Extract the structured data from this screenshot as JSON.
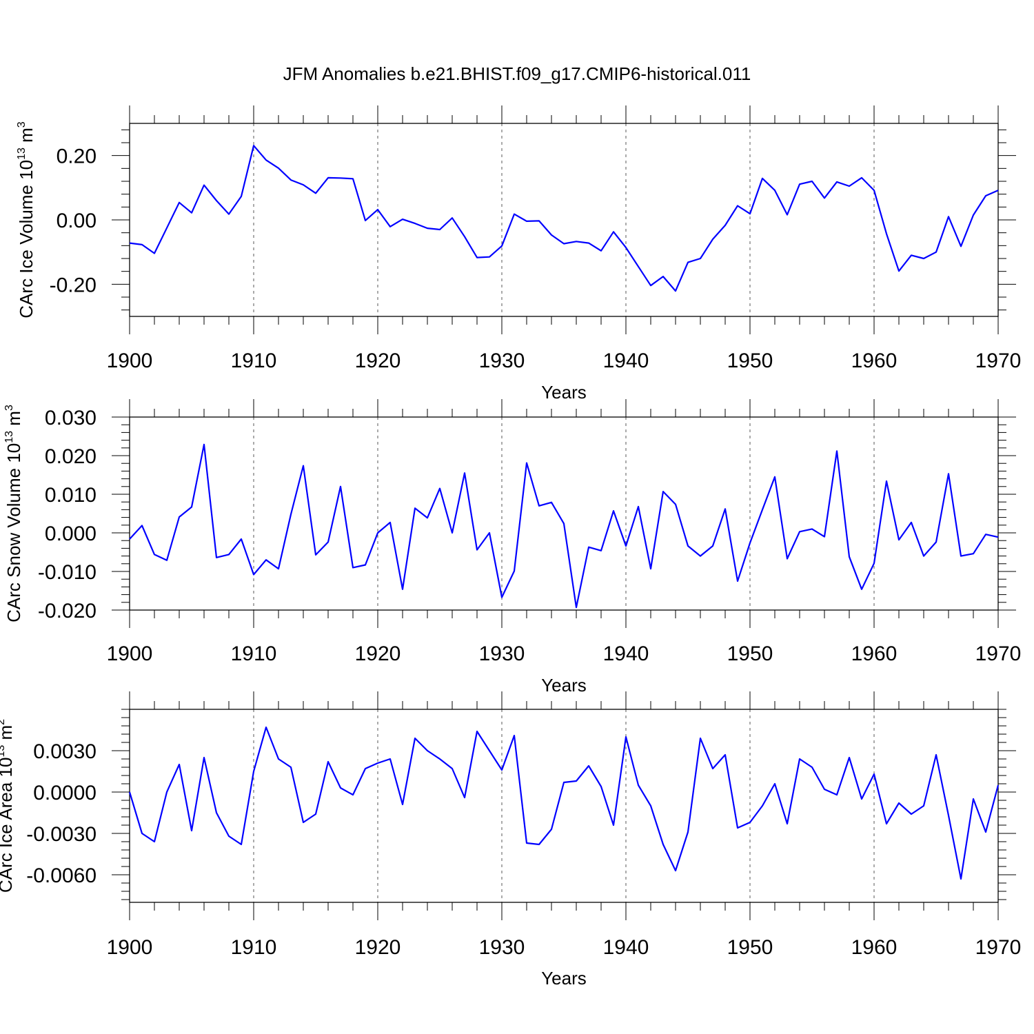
{
  "figure_title": "JFM Anomalies b.e21.BHIST.f09_g17.CMIP6-historical.011",
  "colors": {
    "series": "#0000ff",
    "axes": "#000000",
    "grid": "#555555"
  },
  "chart_data": [
    {
      "type": "line",
      "title": "JFM Anomalies b.e21.BHIST.f09_g17.CMIP6-historical.011",
      "xlabel": "Years",
      "ylabel": "CArc Ice Volume 10",
      "ylabel_sup": "13",
      "ylabel_unit": "m",
      "ylabel_unit_sup": "3",
      "xlim": [
        1900,
        1970
      ],
      "ylim": [
        -0.3,
        0.3
      ],
      "x_ticks": [
        "1900",
        "1910",
        "1920",
        "1930",
        "1940",
        "1950",
        "1960",
        "1970"
      ],
      "y_ticks": [
        {
          "value": 0.2,
          "label": "0.20"
        },
        {
          "value": 0.0,
          "label": "0.00"
        },
        {
          "value": -0.2,
          "label": "-0.20"
        }
      ],
      "x_start": 1900,
      "values": [
        -0.072,
        -0.077,
        -0.104,
        -0.025,
        0.054,
        0.022,
        0.108,
        0.06,
        0.018,
        0.073,
        0.231,
        0.186,
        0.161,
        0.124,
        0.109,
        0.083,
        0.131,
        0.13,
        0.128,
        -0.002,
        0.032,
        -0.021,
        0.002,
        -0.011,
        -0.026,
        -0.03,
        0.006,
        -0.052,
        -0.117,
        -0.115,
        -0.081,
        0.018,
        -0.004,
        -0.003,
        -0.047,
        -0.074,
        -0.067,
        -0.072,
        -0.096,
        -0.037,
        -0.086,
        -0.145,
        -0.204,
        -0.176,
        -0.221,
        -0.132,
        -0.12,
        -0.06,
        -0.017,
        0.044,
        0.019,
        0.129,
        0.092,
        0.016,
        0.111,
        0.12,
        0.068,
        0.118,
        0.105,
        0.131,
        0.092,
        -0.043,
        -0.159,
        -0.11,
        -0.12,
        -0.1,
        0.01,
        -0.082,
        0.015,
        0.075,
        0.092
      ]
    },
    {
      "type": "line",
      "xlabel": "Years",
      "ylabel": "CArc Snow Volume 10",
      "ylabel_sup": "13",
      "ylabel_unit": "m",
      "ylabel_unit_sup": "3",
      "xlim": [
        1900,
        1970
      ],
      "ylim": [
        -0.02,
        0.03
      ],
      "x_ticks": [
        "1900",
        "1910",
        "1920",
        "1930",
        "1940",
        "1950",
        "1960",
        "1970"
      ],
      "y_ticks": [
        {
          "value": 0.03,
          "label": "0.030"
        },
        {
          "value": 0.02,
          "label": "0.020"
        },
        {
          "value": 0.01,
          "label": "0.010"
        },
        {
          "value": 0.0,
          "label": "0.000"
        },
        {
          "value": -0.01,
          "label": "-0.010"
        },
        {
          "value": -0.02,
          "label": "-0.020"
        }
      ],
      "x_start": 1900,
      "values": [
        -0.0016,
        0.0019,
        -0.0056,
        -0.0071,
        0.0041,
        0.0067,
        0.0229,
        -0.0064,
        -0.0056,
        -0.0016,
        -0.0108,
        -0.007,
        -0.0093,
        0.0048,
        0.0174,
        -0.0057,
        -0.0024,
        0.012,
        -0.009,
        -0.0083,
        0.0,
        0.0027,
        -0.0146,
        0.0064,
        0.0039,
        0.0115,
        0.0,
        0.0155,
        -0.0044,
        0.0,
        -0.0167,
        -0.0099,
        0.0181,
        0.007,
        0.0079,
        0.0024,
        -0.0193,
        -0.0037,
        -0.0046,
        0.0057,
        -0.0034,
        0.0068,
        -0.0093,
        0.0107,
        0.0074,
        -0.0034,
        -0.006,
        -0.0034,
        0.0062,
        -0.0125,
        -0.0026,
        0.006,
        0.0145,
        -0.0067,
        0.0003,
        0.001,
        -0.001,
        0.0212,
        -0.0062,
        -0.0146,
        -0.0079,
        0.0134,
        -0.0018,
        0.0027,
        -0.006,
        -0.0024,
        0.0153,
        -0.006,
        -0.0054,
        -0.0004,
        -0.0011
      ]
    },
    {
      "type": "line",
      "xlabel": "Years",
      "ylabel": "CArc Ice Area 10",
      "ylabel_sup": "13",
      "ylabel_unit": "m",
      "ylabel_unit_sup": "2",
      "xlim": [
        1900,
        1970
      ],
      "ylim": [
        -0.008,
        0.006
      ],
      "x_ticks": [
        "1900",
        "1910",
        "1920",
        "1930",
        "1940",
        "1950",
        "1960",
        "1970"
      ],
      "y_ticks": [
        {
          "value": 0.003,
          "label": "0.0030"
        },
        {
          "value": 0.0,
          "label": "0.0000"
        },
        {
          "value": -0.003,
          "label": "-0.0030"
        },
        {
          "value": -0.006,
          "label": "-0.0060"
        }
      ],
      "x_start": 1900,
      "values": [
        0.0,
        -0.003,
        -0.0036,
        0.0,
        0.002,
        -0.0028,
        0.0025,
        -0.0015,
        -0.0032,
        -0.0038,
        0.0015,
        0.0047,
        0.0024,
        0.0018,
        -0.0022,
        -0.0016,
        0.0022,
        0.0003,
        -0.0002,
        0.0017,
        0.0021,
        0.0024,
        -0.0009,
        0.0039,
        0.003,
        0.0024,
        0.0017,
        -0.0004,
        0.0044,
        0.003,
        0.0016,
        0.0041,
        -0.0037,
        -0.0038,
        -0.0027,
        0.0007,
        0.0008,
        0.0019,
        0.0004,
        -0.0024,
        0.004,
        0.0005,
        -0.001,
        -0.0038,
        -0.0057,
        -0.0029,
        0.0039,
        0.0017,
        0.0027,
        -0.0026,
        -0.0022,
        -0.001,
        0.0006,
        -0.0023,
        0.0024,
        0.0018,
        0.0002,
        -0.0002,
        0.0025,
        -0.0005,
        0.0013,
        -0.0023,
        -0.0008,
        -0.0016,
        -0.001,
        0.0027,
        -0.0017,
        -0.0063,
        -0.0005,
        -0.0029,
        0.0005
      ]
    }
  ]
}
